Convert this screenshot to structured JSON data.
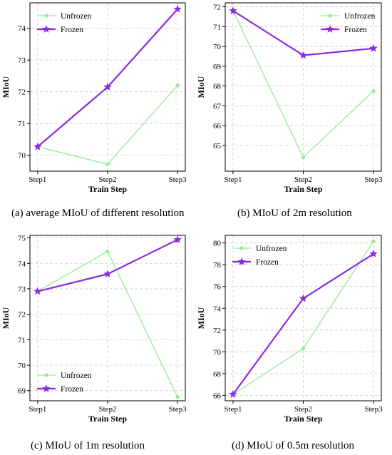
{
  "colors": {
    "unfrozen": "#90EE90",
    "frozen": "#8A2BE2",
    "grid": "#cccccc"
  },
  "chart_data": [
    {
      "type": "line",
      "categories": [
        "Step1",
        "Step2",
        "Step3"
      ],
      "xlabel": "Train Step",
      "ylabel": "MIoU",
      "ylim": [
        69.5,
        74.8
      ],
      "yticks": [
        70,
        71,
        72,
        73,
        74
      ],
      "grid": true,
      "legend": "top-left",
      "caption": "(a) average MIoU of different resolution",
      "series": [
        {
          "name": "Unfrozen",
          "values": [
            70.27,
            69.72,
            72.2
          ]
        },
        {
          "name": "Frozen",
          "values": [
            70.27,
            72.15,
            74.6
          ]
        }
      ]
    },
    {
      "type": "line",
      "categories": [
        "Step1",
        "Step2",
        "Step3"
      ],
      "xlabel": "Train Step",
      "ylabel": "MIoU",
      "ylim": [
        63.7,
        72.2
      ],
      "yticks": [
        65,
        66,
        67,
        68,
        69,
        70,
        71,
        72
      ],
      "grid": true,
      "legend": "top-right",
      "caption": "(b) MIoU of 2m resolution",
      "series": [
        {
          "name": "Unfrozen",
          "values": [
            71.8,
            64.4,
            67.75
          ]
        },
        {
          "name": "Frozen",
          "values": [
            71.8,
            69.55,
            69.9
          ]
        }
      ]
    },
    {
      "type": "line",
      "categories": [
        "Step1",
        "Step2",
        "Step3"
      ],
      "xlabel": "Train Step",
      "ylabel": "MIoU",
      "ylim": [
        68.6,
        75.1
      ],
      "yticks": [
        69,
        70,
        71,
        72,
        73,
        74,
        75
      ],
      "grid": true,
      "legend": "bottom-left",
      "caption": "(c) MIoU of 1m resolution",
      "series": [
        {
          "name": "Unfrozen",
          "values": [
            72.9,
            74.47,
            68.75
          ]
        },
        {
          "name": "Frozen",
          "values": [
            72.9,
            73.58,
            74.93
          ]
        }
      ]
    },
    {
      "type": "line",
      "categories": [
        "Step1",
        "Step2",
        "Step3"
      ],
      "xlabel": "Train Step",
      "ylabel": "MIoU",
      "ylim": [
        65.5,
        80.7
      ],
      "yticks": [
        66,
        68,
        70,
        72,
        74,
        76,
        78,
        80
      ],
      "grid": true,
      "legend": "top-left",
      "caption": "(d) MIoU of 0.5m resolution",
      "series": [
        {
          "name": "Unfrozen",
          "values": [
            66.1,
            70.3,
            80.15
          ]
        },
        {
          "name": "Frozen",
          "values": [
            66.1,
            74.9,
            79.0
          ]
        }
      ]
    }
  ]
}
